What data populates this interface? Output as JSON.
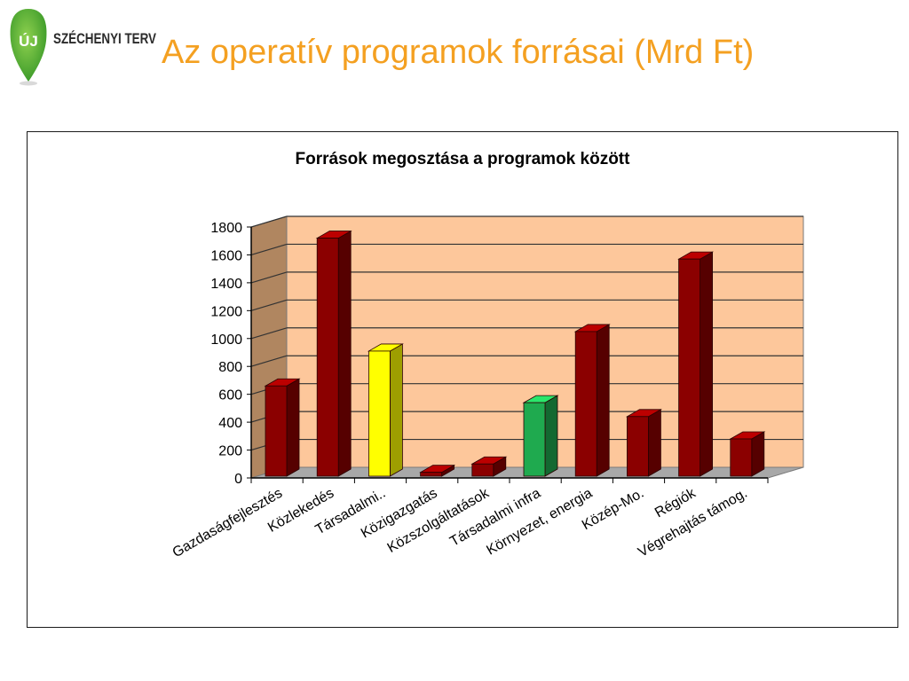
{
  "brand": {
    "name": "SZÉCHENYI TERV",
    "mark": "ÚJ"
  },
  "slide": {
    "title": "Az operatív programok forrásai (Mrd Ft)"
  },
  "colors": {
    "title": "#f4a021",
    "bar_default": "#8b0000",
    "bar_highlight_yellow": "#ffff00",
    "bar_highlight_green": "#1faa4f",
    "plot_back": "#fdc79b",
    "plot_side": "#b08660",
    "floor": "#a8a8a8"
  },
  "chart_data": {
    "type": "bar",
    "title": "Források megosztása a programok között",
    "xlabel": "",
    "ylabel": "",
    "ylim": [
      0,
      1800
    ],
    "yticks": [
      0,
      200,
      400,
      600,
      800,
      1000,
      1200,
      1400,
      1600,
      1800
    ],
    "grid": true,
    "categories": [
      "Gazdaságfejlesztés",
      "Közlekedés",
      "Társadalmi..",
      "Közigazgatás",
      "Közszolgáltatások",
      "Társadalmi infra",
      "Környezet, energia",
      "Közép-Mo.",
      "Régiók",
      "Végrehajtás támog."
    ],
    "values": [
      660,
      1720,
      910,
      40,
      100,
      540,
      1050,
      440,
      1570,
      280
    ],
    "bar_colors": [
      "#8b0000",
      "#8b0000",
      "#ffff00",
      "#8b0000",
      "#8b0000",
      "#1faa4f",
      "#8b0000",
      "#8b0000",
      "#8b0000",
      "#8b0000"
    ]
  }
}
